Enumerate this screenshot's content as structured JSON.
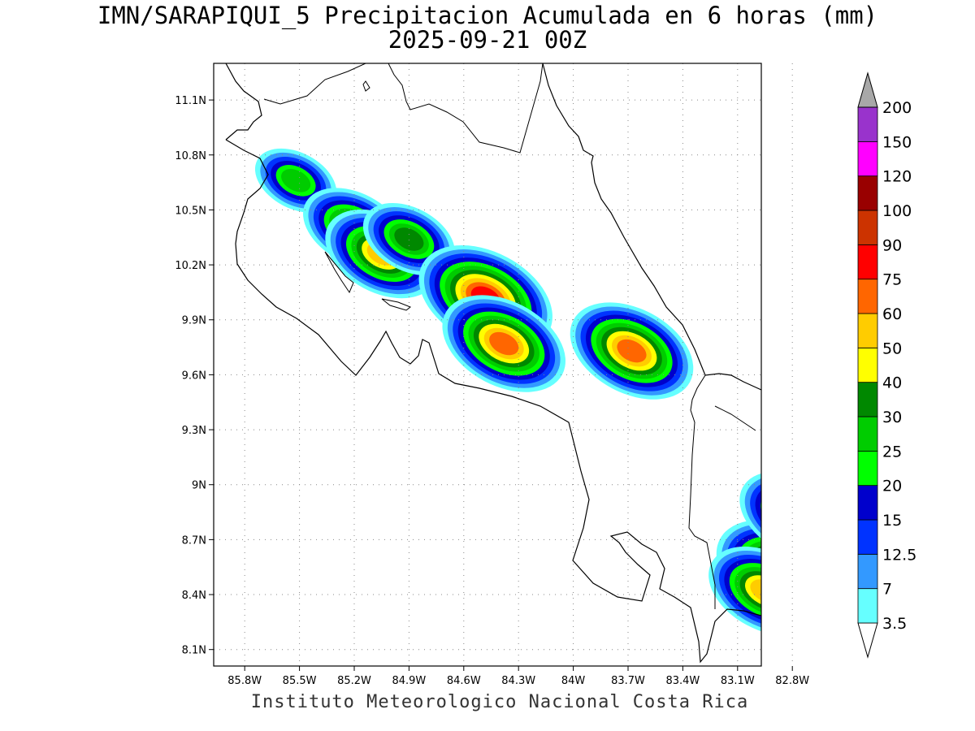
{
  "title": {
    "line1": "IMN/SARAPIQUI_5 Precipitacion Acumulada en 6 horas (mm)",
    "line2": "2025-09-21 00Z"
  },
  "footer": "Instituto Meteorologico Nacional Costa Rica",
  "chart_data": {
    "type": "heatmap",
    "variable": "6-hour accumulated precipitation (mm)",
    "x_ticks": [
      "85.8W",
      "85.5W",
      "85.2W",
      "84.9W",
      "84.6W",
      "84.3W",
      "84W",
      "83.7W",
      "83.4W",
      "83.1W",
      "82.8W"
    ],
    "y_ticks": [
      "11.1N",
      "10.8N",
      "10.5N",
      "10.2N",
      "9.9N",
      "9.6N",
      "9.3N",
      "9N",
      "8.7N",
      "8.4N",
      "8.1N"
    ],
    "lon_range": [
      -85.97,
      -82.97
    ],
    "lat_range": [
      8.01,
      11.3
    ],
    "grid": true,
    "legend": {
      "position": "right",
      "levels": [
        "3.5",
        "7",
        "12.5",
        "15",
        "20",
        "25",
        "30",
        "40",
        "50",
        "60",
        "75",
        "90",
        "100",
        "120",
        "150",
        "200"
      ],
      "colors": [
        "#66ffff",
        "#3399ff",
        "#0033ff",
        "#0000cc",
        "#00ff00",
        "#00cc00",
        "#008800",
        "#ffff00",
        "#ffcc00",
        "#ff6600",
        "#ff0000",
        "#cc3300",
        "#990000",
        "#ff00ff",
        "#9933cc",
        "#f5f5f5",
        "#a8a8a8"
      ]
    },
    "rain_cells": [
      {
        "lon": -85.52,
        "lat": 10.66,
        "peak": 28
      },
      {
        "lon": -85.2,
        "lat": 10.4,
        "peak": 45
      },
      {
        "lon": -85.05,
        "lat": 10.26,
        "peak": 55
      },
      {
        "lon": -84.9,
        "lat": 10.34,
        "peak": 30
      },
      {
        "lon": -84.48,
        "lat": 10.02,
        "peak": 75
      },
      {
        "lon": -84.38,
        "lat": 9.77,
        "peak": 60
      },
      {
        "lon": -83.68,
        "lat": 9.73,
        "peak": 60
      },
      {
        "lon": -82.85,
        "lat": 8.52,
        "peak": 75
      },
      {
        "lon": -82.78,
        "lat": 8.83,
        "peak": 50
      },
      {
        "lon": -82.6,
        "lat": 8.7,
        "peak": 75
      },
      {
        "lon": -82.95,
        "lat": 8.42,
        "peak": 50
      }
    ]
  }
}
